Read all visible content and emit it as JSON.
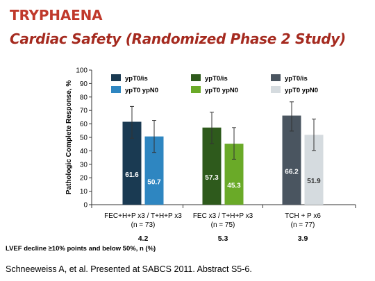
{
  "header": {
    "title": "TRYPHAENA",
    "subtitle": "Cardiac Safety (Randomized Phase 2 Study)"
  },
  "chart_data": {
    "type": "bar",
    "ylabel": "Pathologic Complete Response, %",
    "ylim": [
      0,
      100
    ],
    "yticks": [
      0,
      10,
      20,
      30,
      40,
      50,
      60,
      70,
      80,
      90,
      100
    ],
    "grid": false,
    "legend_placement": "top",
    "groups": [
      {
        "label": "FEC+H+P x3 / T+H+P x3",
        "n_label": "(n = 73)",
        "lvef": "4.2",
        "bars": [
          {
            "legend": "ypT0/is",
            "value": 61.6,
            "label": "61.6",
            "err_low": 49.4,
            "err_high": 73.0,
            "color": "#1a3a52"
          },
          {
            "legend": "ypT0 ypN0",
            "value": 50.7,
            "label": "50.7",
            "err_low": 38.8,
            "err_high": 62.6,
            "color": "#2e86c1"
          }
        ]
      },
      {
        "label": "FEC x3 / T+H+P x3",
        "n_label": "(n = 75)",
        "lvef": "5.3",
        "bars": [
          {
            "legend": "ypT0/is",
            "value": 57.3,
            "label": "57.3",
            "err_low": 45.4,
            "err_high": 68.7,
            "color": "#2e5a1c"
          },
          {
            "legend": "ypT0 ypN0",
            "value": 45.3,
            "label": "45.3",
            "err_low": 33.8,
            "err_high": 57.3,
            "color": "#6aaa28"
          }
        ]
      },
      {
        "label": "TCH + P x6",
        "n_label": "(n = 77)",
        "lvef": "3.9",
        "bars": [
          {
            "legend": "ypT0/is",
            "value": 66.2,
            "label": "66.2",
            "err_low": 54.7,
            "err_high": 76.4,
            "color": "#4a5560"
          },
          {
            "legend": "ypT0 ypN0",
            "value": 51.9,
            "label": "51.9",
            "err_low": 40.2,
            "err_high": 63.6,
            "color": "#d5dbdf"
          }
        ]
      }
    ]
  },
  "footer": {
    "lvef_label": "LVEF decline ≥10% points and below 50%, n (%)",
    "citation": "Schneeweiss A, et al. Presented at SABCS 2011. Abstract S5-6."
  }
}
